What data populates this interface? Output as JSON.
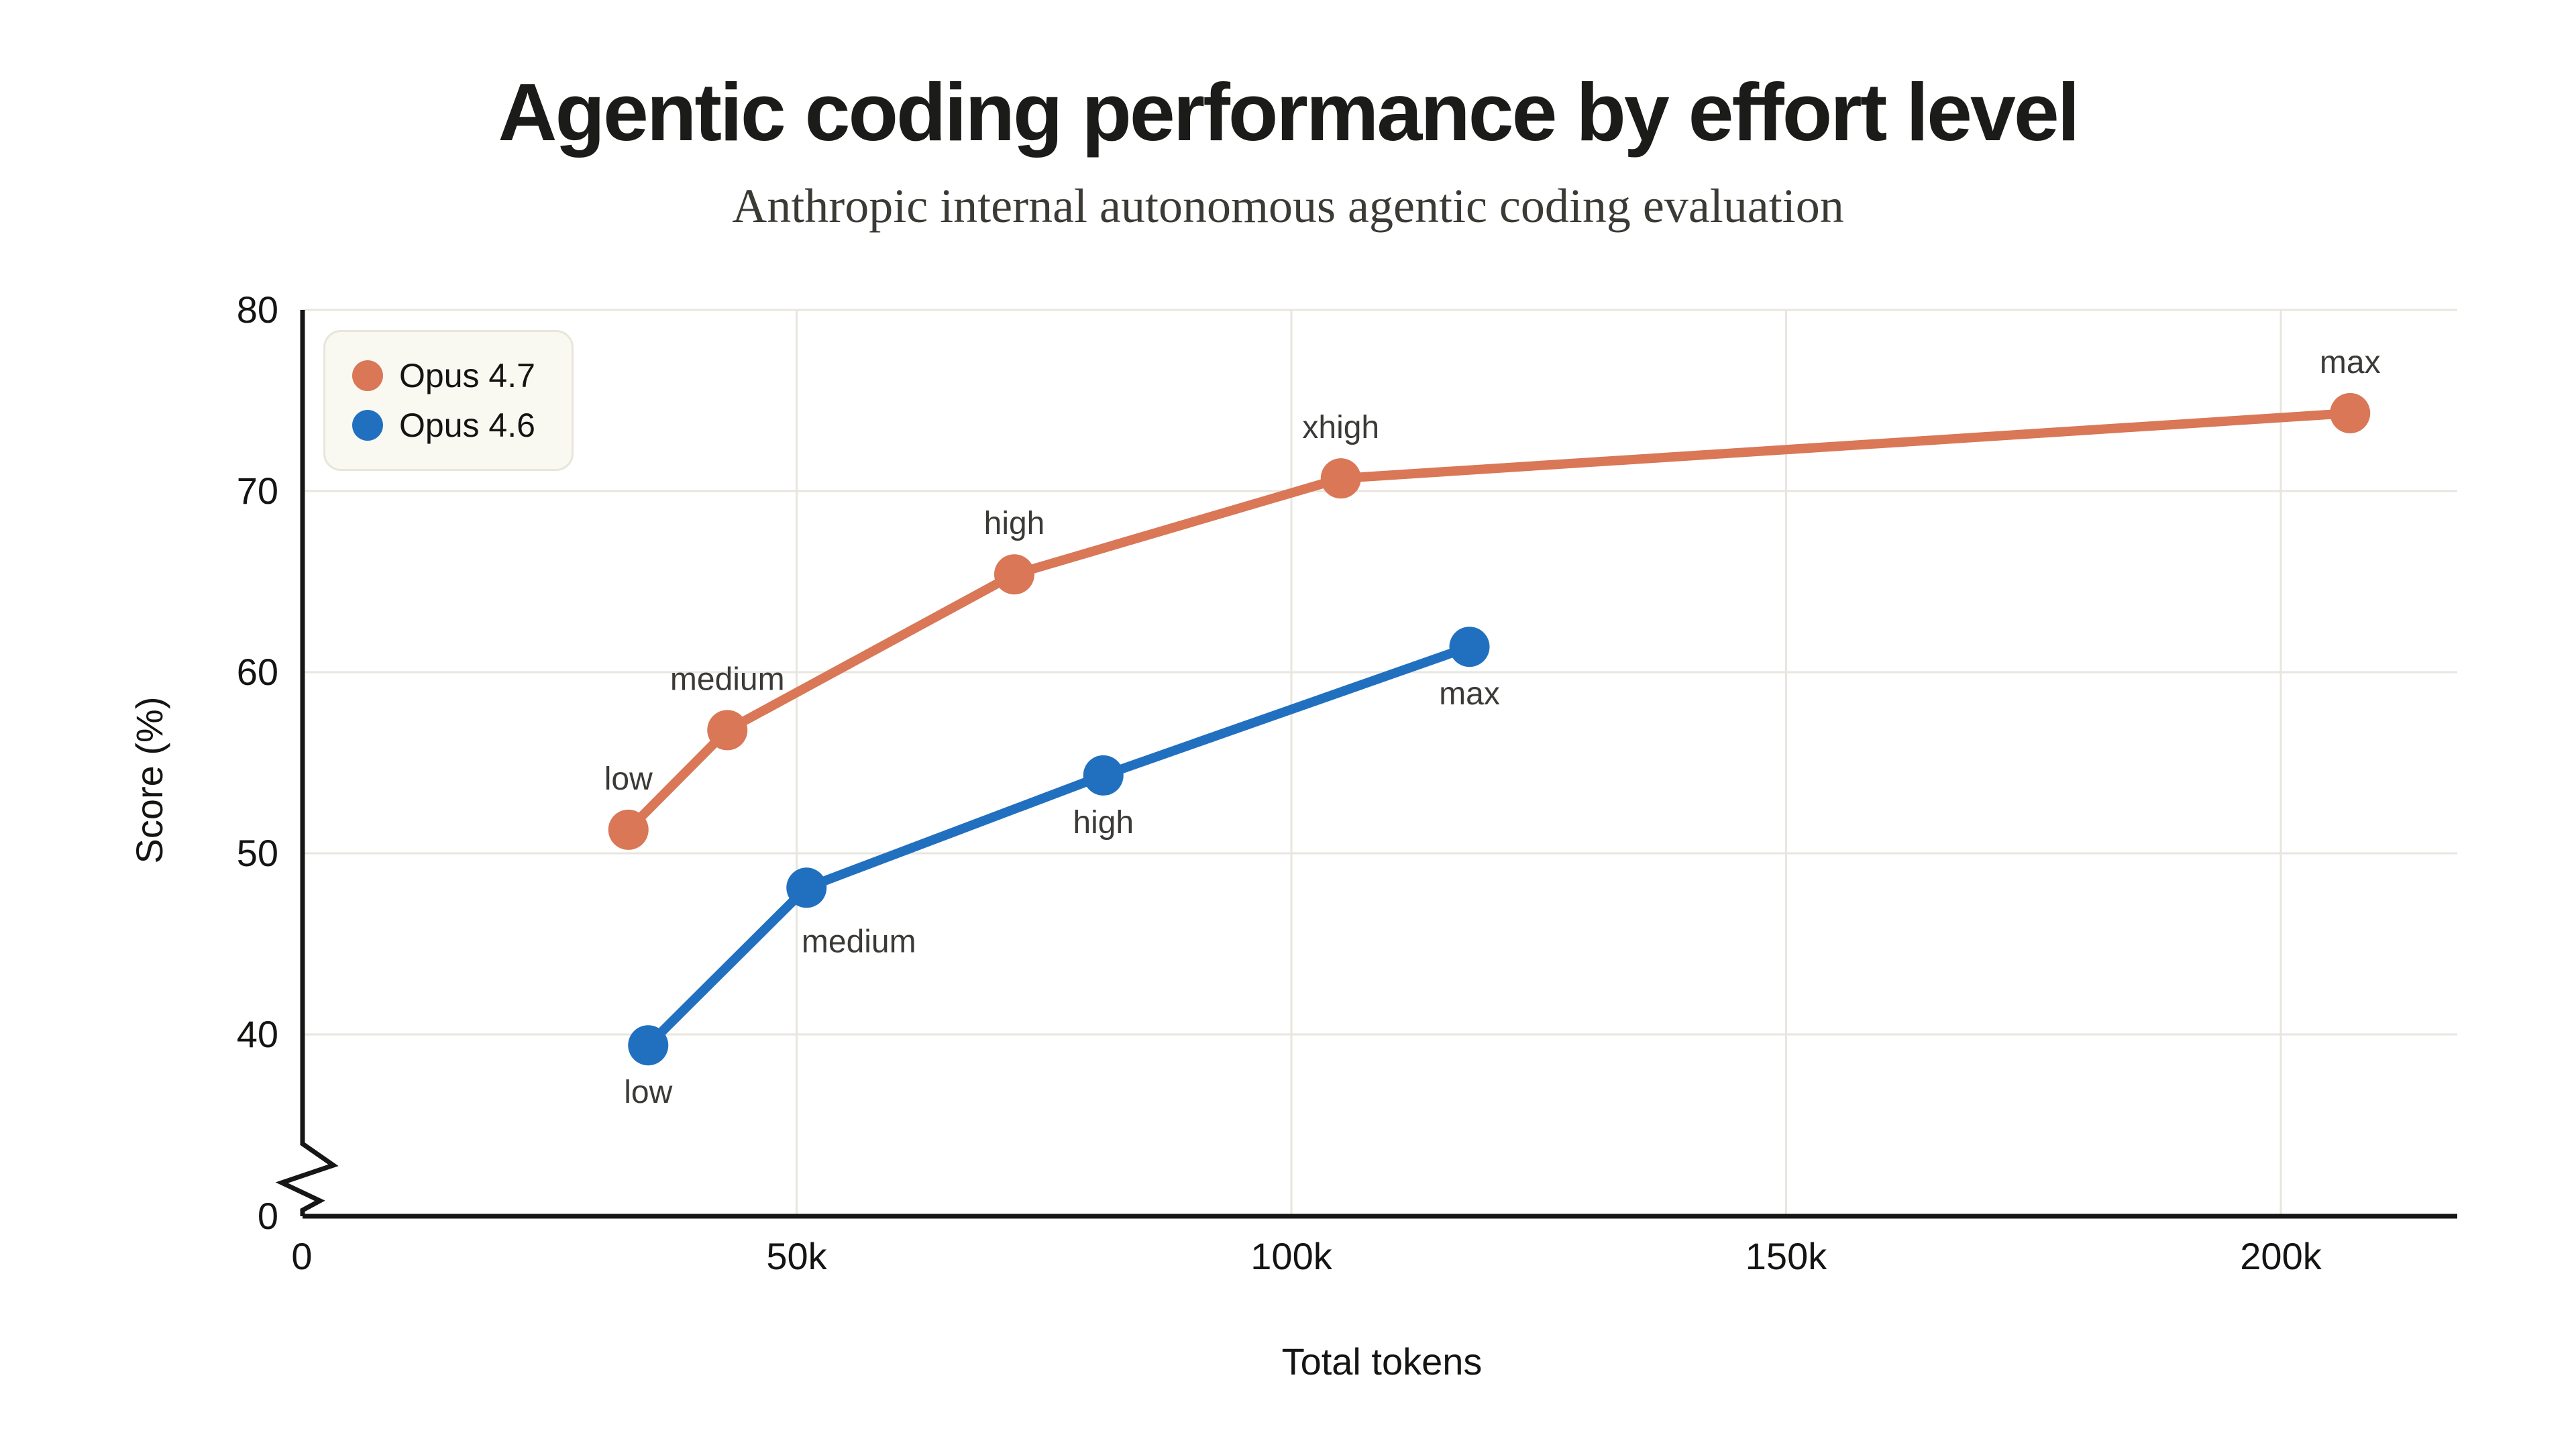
{
  "header": {
    "title": "Agentic coding performance by effort level",
    "subtitle": "Anthropic internal autonomous agentic coding evaluation"
  },
  "chart_data": {
    "type": "line",
    "title": "Agentic coding performance by effort level",
    "subtitle": "Anthropic internal autonomous agentic coding evaluation",
    "xlabel": "Total tokens",
    "ylabel": "Score (%)",
    "grid": true,
    "legend_position": "top-left",
    "x_axis": {
      "min": 0,
      "max": 220000,
      "ticks": [
        {
          "value": 0,
          "label": "0"
        },
        {
          "value": 50000,
          "label": "50k"
        },
        {
          "value": 100000,
          "label": "100k"
        },
        {
          "value": 150000,
          "label": "150k"
        },
        {
          "value": 200000,
          "label": "200k"
        }
      ]
    },
    "y_axis": {
      "min": 0,
      "max": 80,
      "axis_break": true,
      "break_between": [
        0,
        40
      ],
      "ticks": [
        {
          "value": 0,
          "label": "0"
        },
        {
          "value": 40,
          "label": "40"
        },
        {
          "value": 50,
          "label": "50"
        },
        {
          "value": 60,
          "label": "60"
        },
        {
          "value": 70,
          "label": "70"
        },
        {
          "value": 80,
          "label": "80"
        }
      ]
    },
    "series": [
      {
        "name": "Opus 4.7",
        "color": "#D97757",
        "points": [
          {
            "x": 33000,
            "y": 51.3,
            "label": "low",
            "label_side": "above"
          },
          {
            "x": 43000,
            "y": 56.8,
            "label": "medium",
            "label_side": "above"
          },
          {
            "x": 72000,
            "y": 65.4,
            "label": "high",
            "label_side": "above"
          },
          {
            "x": 105000,
            "y": 70.7,
            "label": "xhigh",
            "label_side": "above"
          },
          {
            "x": 207000,
            "y": 74.3,
            "label": "max",
            "label_side": "above"
          }
        ]
      },
      {
        "name": "Opus 4.6",
        "color": "#2170C0",
        "points": [
          {
            "x": 35000,
            "y": 39.4,
            "label": "low",
            "label_side": "below"
          },
          {
            "x": 51000,
            "y": 48.1,
            "label": "medium",
            "label_side": "below-right"
          },
          {
            "x": 81000,
            "y": 54.3,
            "label": "high",
            "label_side": "below"
          },
          {
            "x": 118000,
            "y": 61.4,
            "label": "max",
            "label_side": "below"
          }
        ]
      }
    ],
    "style": {
      "grid_color": "#E8E6DE",
      "axis_color": "#161616",
      "tick_color": "#141413",
      "point_label_color": "#3B3A37",
      "legend_bg": "#F9F8F1",
      "legend_border": "#E8E5DA"
    }
  }
}
